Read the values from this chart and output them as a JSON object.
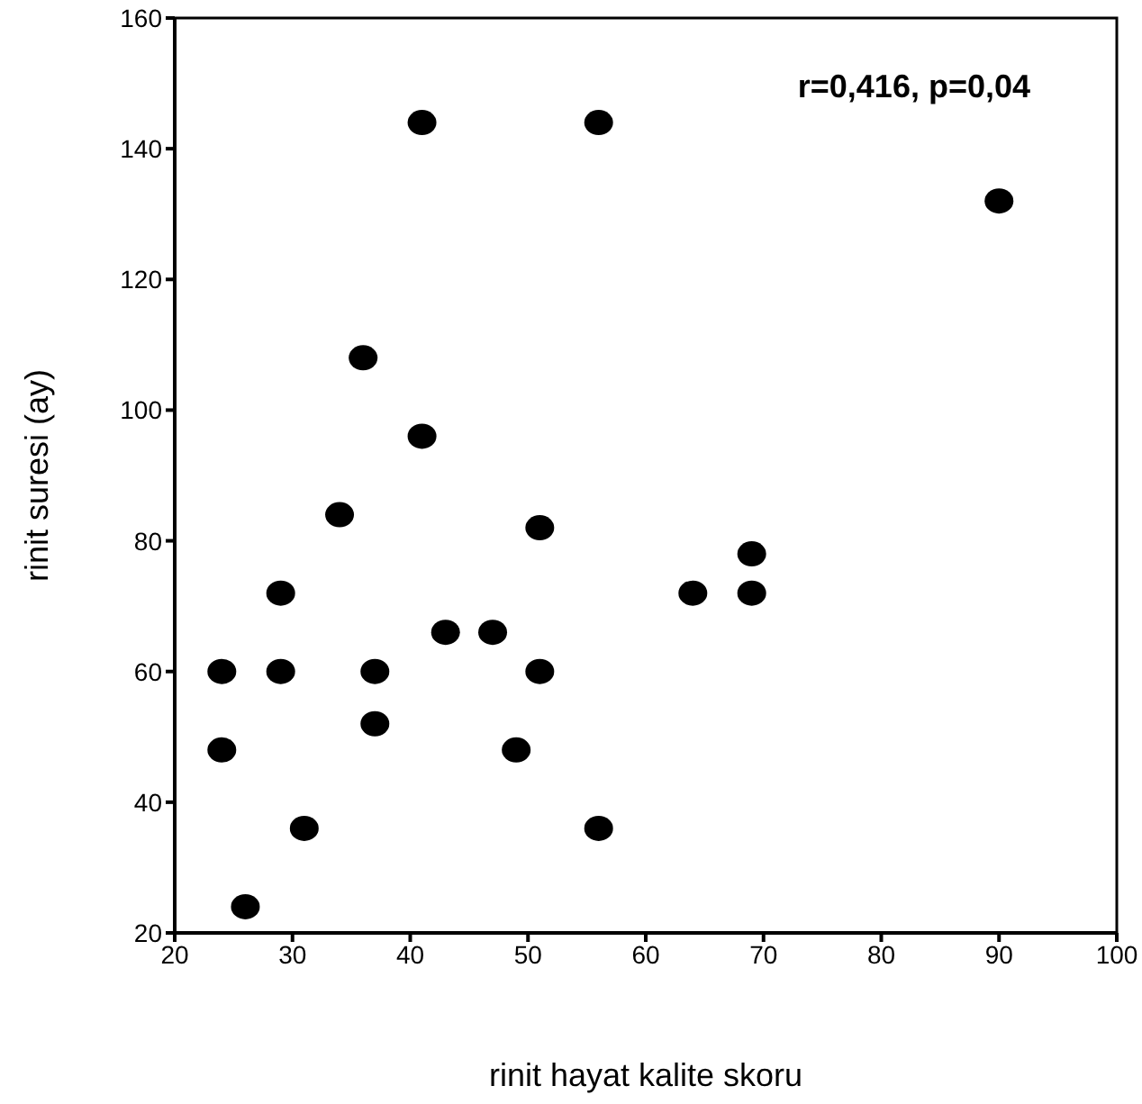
{
  "chart_data": {
    "type": "scatter",
    "xlabel": "rinit hayat kalite skoru",
    "ylabel": "rinit suresi (ay)",
    "annotations": [
      "r=0,416, p=0,04"
    ],
    "x": [
      24,
      24,
      26,
      29,
      29,
      31,
      34,
      36,
      37,
      37,
      41,
      41,
      43,
      47,
      49,
      51,
      51,
      56,
      56,
      64,
      69,
      69,
      90
    ],
    "series": [
      {
        "color": "#000000",
        "values": [
          60,
          48,
          24,
          72,
          60,
          36,
          84,
          108,
          60,
          52,
          144,
          96,
          66,
          66,
          48,
          82,
          60,
          144,
          36,
          72,
          78,
          72,
          132
        ]
      }
    ],
    "xlim": [
      20,
      100
    ],
    "xticks": [
      20,
      30,
      40,
      50,
      60,
      70,
      80,
      90,
      100
    ],
    "ylim": [
      20,
      160
    ],
    "yticks": [
      20,
      40,
      60,
      80,
      100,
      120,
      140,
      160
    ],
    "grid": false,
    "legend": false,
    "marker": "circle"
  }
}
